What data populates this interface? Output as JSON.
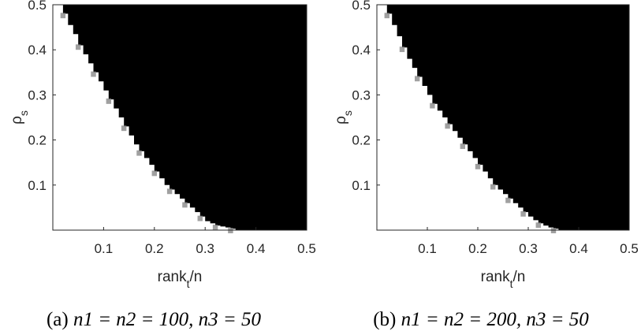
{
  "chart_data": [
    {
      "type": "heatmap",
      "caption_label": "(a)",
      "caption_math": "n1 = n2 = 100, n3 = 50",
      "xlabel": "rank",
      "xlabel_sub": "t",
      "xlabel_tail": "/n",
      "ylabel": "ρ",
      "ylabel_sub": "s",
      "xlim": [
        0.0,
        0.5
      ],
      "ylim": [
        0.0,
        0.5
      ],
      "xticks": [
        0.1,
        0.2,
        0.3,
        0.4,
        0.5
      ],
      "xtick_labels": [
        "0.1",
        "0.2",
        "0.3",
        "0.4",
        "0.5"
      ],
      "yticks": [
        0.1,
        0.2,
        0.3,
        0.4,
        0.5
      ],
      "ytick_labels": [
        "0.1",
        "0.2",
        "0.3",
        "0.4",
        "0.5"
      ],
      "grid": false,
      "colors": {
        "success": "#ffffff",
        "failure": "#000000",
        "transition": "#888888"
      },
      "boundary": {
        "x": [
          0.01,
          0.02,
          0.03,
          0.04,
          0.05,
          0.06,
          0.07,
          0.08,
          0.09,
          0.1,
          0.11,
          0.12,
          0.13,
          0.14,
          0.15,
          0.16,
          0.17,
          0.18,
          0.19,
          0.2,
          0.21,
          0.22,
          0.23,
          0.24,
          0.25,
          0.26,
          0.27,
          0.28,
          0.29,
          0.3,
          0.31,
          0.32,
          0.33,
          0.34,
          0.35,
          0.36
        ],
        "y": [
          0.5,
          0.48,
          0.455,
          0.435,
          0.41,
          0.39,
          0.37,
          0.35,
          0.33,
          0.31,
          0.29,
          0.27,
          0.25,
          0.23,
          0.21,
          0.19,
          0.175,
          0.16,
          0.145,
          0.13,
          0.115,
          0.1,
          0.09,
          0.08,
          0.07,
          0.06,
          0.05,
          0.04,
          0.03,
          0.02,
          0.015,
          0.01,
          0.008,
          0.006,
          0.003,
          0.0
        ]
      }
    },
    {
      "type": "heatmap",
      "caption_label": "(b)",
      "caption_math": "n1 = n2 = 200, n3 = 50",
      "xlabel": "rank",
      "xlabel_sub": "t",
      "xlabel_tail": "/n",
      "ylabel": "ρ",
      "ylabel_sub": "s",
      "xlim": [
        0.0,
        0.5
      ],
      "ylim": [
        0.0,
        0.5
      ],
      "xticks": [
        0.1,
        0.2,
        0.3,
        0.4,
        0.5
      ],
      "xtick_labels": [
        "0.1",
        "0.2",
        "0.3",
        "0.4",
        "0.5"
      ],
      "yticks": [
        0.1,
        0.2,
        0.3,
        0.4,
        0.5
      ],
      "ytick_labels": [
        "0.1",
        "0.2",
        "0.3",
        "0.4",
        "0.5"
      ],
      "grid": false,
      "colors": {
        "success": "#ffffff",
        "failure": "#000000",
        "transition": "#888888"
      },
      "boundary": {
        "x": [
          0.01,
          0.02,
          0.03,
          0.04,
          0.05,
          0.06,
          0.07,
          0.08,
          0.09,
          0.1,
          0.11,
          0.12,
          0.13,
          0.14,
          0.15,
          0.16,
          0.17,
          0.18,
          0.19,
          0.2,
          0.21,
          0.22,
          0.23,
          0.24,
          0.25,
          0.26,
          0.27,
          0.28,
          0.29,
          0.3,
          0.31,
          0.32,
          0.33,
          0.34,
          0.35,
          0.36
        ],
        "y": [
          0.5,
          0.48,
          0.455,
          0.43,
          0.405,
          0.38,
          0.36,
          0.34,
          0.32,
          0.3,
          0.28,
          0.265,
          0.25,
          0.235,
          0.22,
          0.205,
          0.19,
          0.175,
          0.16,
          0.145,
          0.13,
          0.115,
          0.1,
          0.09,
          0.08,
          0.07,
          0.06,
          0.05,
          0.04,
          0.03,
          0.022,
          0.015,
          0.01,
          0.006,
          0.003,
          0.0
        ]
      }
    }
  ]
}
